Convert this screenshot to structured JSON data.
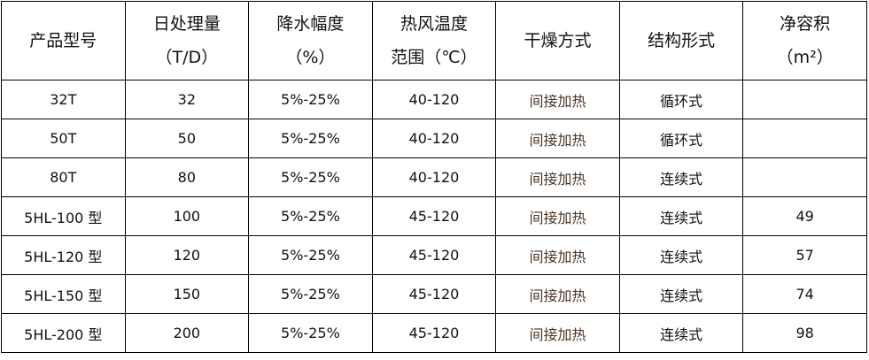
{
  "headers": [
    {
      "l1": "产品型号",
      "l2": ""
    },
    {
      "l1": "日处理量",
      "l2": "（T/D）"
    },
    {
      "l1": "降水幅度",
      "l2": "（%）"
    },
    {
      "l1": "热风温度",
      "l2": "范围（℃）"
    },
    {
      "l1": "干燥方式",
      "l2": ""
    },
    {
      "l1": "结构形式",
      "l2": ""
    },
    {
      "l1": "净容积",
      "l2": "（m²）"
    }
  ],
  "rows": [
    [
      "32T",
      "32",
      "5%-25%",
      "40-120",
      "间接加热",
      "循环式",
      ""
    ],
    [
      "50T",
      "50",
      "5%-25%",
      "40-120",
      "间接加热",
      "循环式",
      ""
    ],
    [
      "80T",
      "80",
      "5%-25%",
      "40-120",
      "间接加热",
      "连续式",
      ""
    ],
    [
      "5HL-100 型",
      "100",
      "5%-25%",
      "45-120",
      "间接加热",
      "连续式",
      "49"
    ],
    [
      "5HL-120 型",
      "120",
      "5%-25%",
      "45-120",
      "间接加热",
      "连续式",
      "57"
    ],
    [
      "5HL-150 型",
      "150",
      "5%-25%",
      "45-120",
      "间接加热",
      "连续式",
      "74"
    ],
    [
      "5HL-200 型",
      "200",
      "5%-25%",
      "45-120",
      "间接加热",
      "连续式",
      "98"
    ]
  ]
}
